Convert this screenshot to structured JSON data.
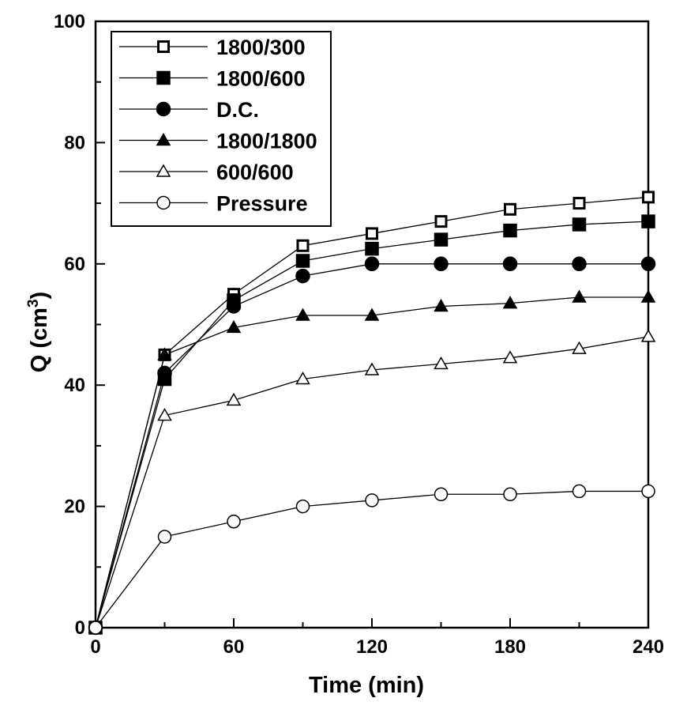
{
  "chart_data": {
    "type": "line",
    "title": "",
    "xlabel": "Time (min)",
    "ylabel_main": "Q (cm",
    "ylabel_sup": "3",
    "ylabel_close": ")",
    "xlim": [
      0,
      240
    ],
    "ylim": [
      0,
      100
    ],
    "xticks": [
      "0",
      "60",
      "120",
      "180",
      "240"
    ],
    "yticks": [
      "0",
      "20",
      "40",
      "60",
      "80",
      "100"
    ],
    "grid": false,
    "legend_position": "top-left",
    "x": [
      0,
      30,
      60,
      90,
      120,
      150,
      180,
      210,
      240
    ],
    "series": [
      {
        "name": "1800/300",
        "marker": "square-open",
        "values": [
          0,
          45,
          55,
          63,
          65,
          67,
          69,
          70,
          71
        ]
      },
      {
        "name": "1800/600",
        "marker": "square-filled",
        "values": [
          0,
          41,
          54,
          60.5,
          62.5,
          64,
          65.5,
          66.5,
          67
        ]
      },
      {
        "name": "D.C.",
        "marker": "circle-filled",
        "values": [
          0,
          42,
          53,
          58,
          60,
          60,
          60,
          60,
          60
        ]
      },
      {
        "name": "1800/1800",
        "marker": "triangle-filled",
        "values": [
          0,
          45,
          49.5,
          51.5,
          51.5,
          53,
          53.5,
          54.5,
          54.5
        ]
      },
      {
        "name": "600/600",
        "marker": "triangle-open",
        "values": [
          0,
          35,
          37.5,
          41,
          42.5,
          43.5,
          44.5,
          46,
          48
        ]
      },
      {
        "name": "Pressure",
        "marker": "circle-open",
        "values": [
          0,
          15,
          17.5,
          20,
          21,
          22,
          22,
          22.5,
          22.5
        ]
      }
    ]
  }
}
